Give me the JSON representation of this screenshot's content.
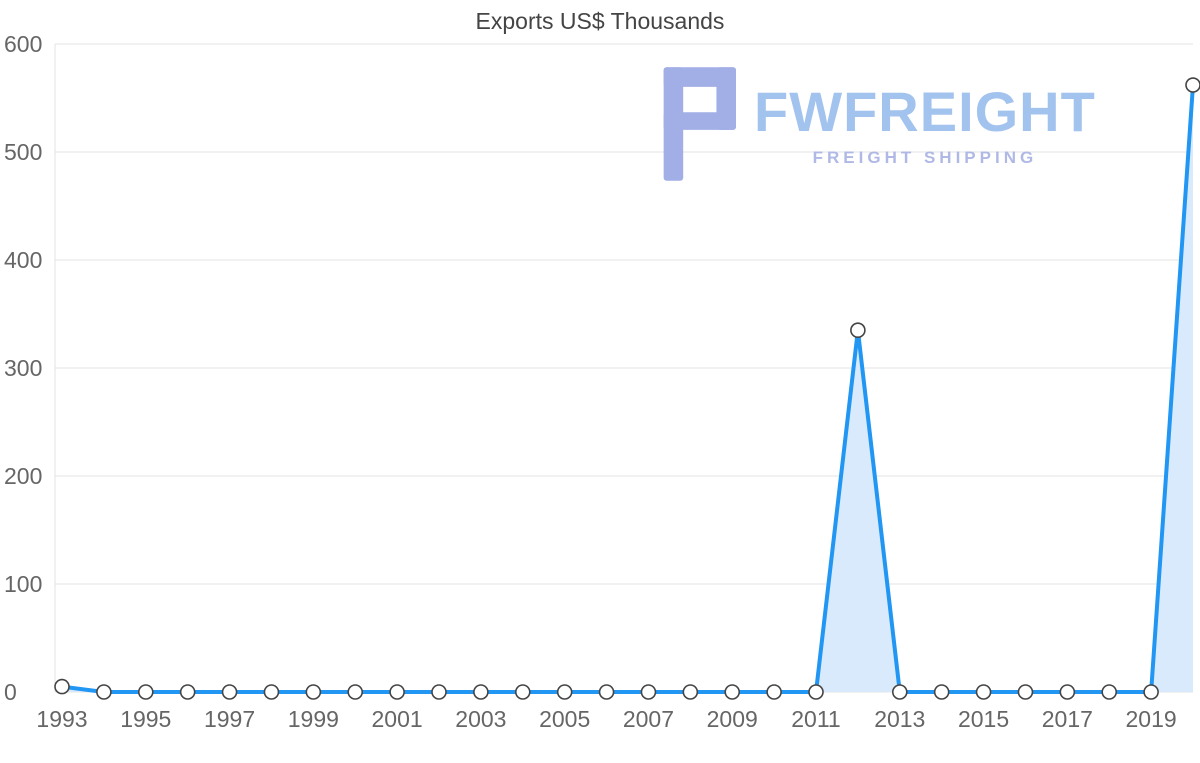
{
  "title": "Exports US$ Thousands",
  "watermark": {
    "brand": "FWFREIGHT",
    "tagline": "FREIGHT SHIPPING"
  },
  "colors": {
    "line": "#2196f3",
    "area": "#d9eafc",
    "grid": "#e3e3e3",
    "axis_text": "#666666",
    "title_text": "#444444",
    "point_fill": "#ffffff",
    "point_stroke": "#444444",
    "logo": "#a2aee6",
    "brand_text": "#a3c3ef",
    "tagline_text": "#b0b9e6",
    "background": "#ffffff"
  },
  "chart_data": {
    "type": "area",
    "title": "Exports US$ Thousands",
    "series_name": "Exports US$ Thousands",
    "x": [
      1993,
      1994,
      1995,
      1996,
      1997,
      1998,
      1999,
      2000,
      2001,
      2002,
      2003,
      2004,
      2005,
      2006,
      2007,
      2008,
      2009,
      2010,
      2011,
      2012,
      2013,
      2014,
      2015,
      2016,
      2017,
      2018,
      2019,
      2020
    ],
    "values": [
      5,
      0,
      0,
      0,
      0,
      0,
      0,
      0,
      0,
      0,
      0,
      0,
      0,
      0,
      0,
      0,
      0,
      0,
      0,
      335,
      0,
      0,
      0,
      0,
      0,
      0,
      0,
      562
    ],
    "xlabel": "",
    "ylabel": "",
    "ylim": [
      0,
      600
    ],
    "yticks": [
      0,
      100,
      200,
      300,
      400,
      500,
      600
    ],
    "xticks": [
      1993,
      1995,
      1997,
      1999,
      2001,
      2003,
      2005,
      2007,
      2009,
      2011,
      2013,
      2015,
      2017,
      2019
    ],
    "grid": "horizontal",
    "legend": "none",
    "marker": "circle"
  }
}
